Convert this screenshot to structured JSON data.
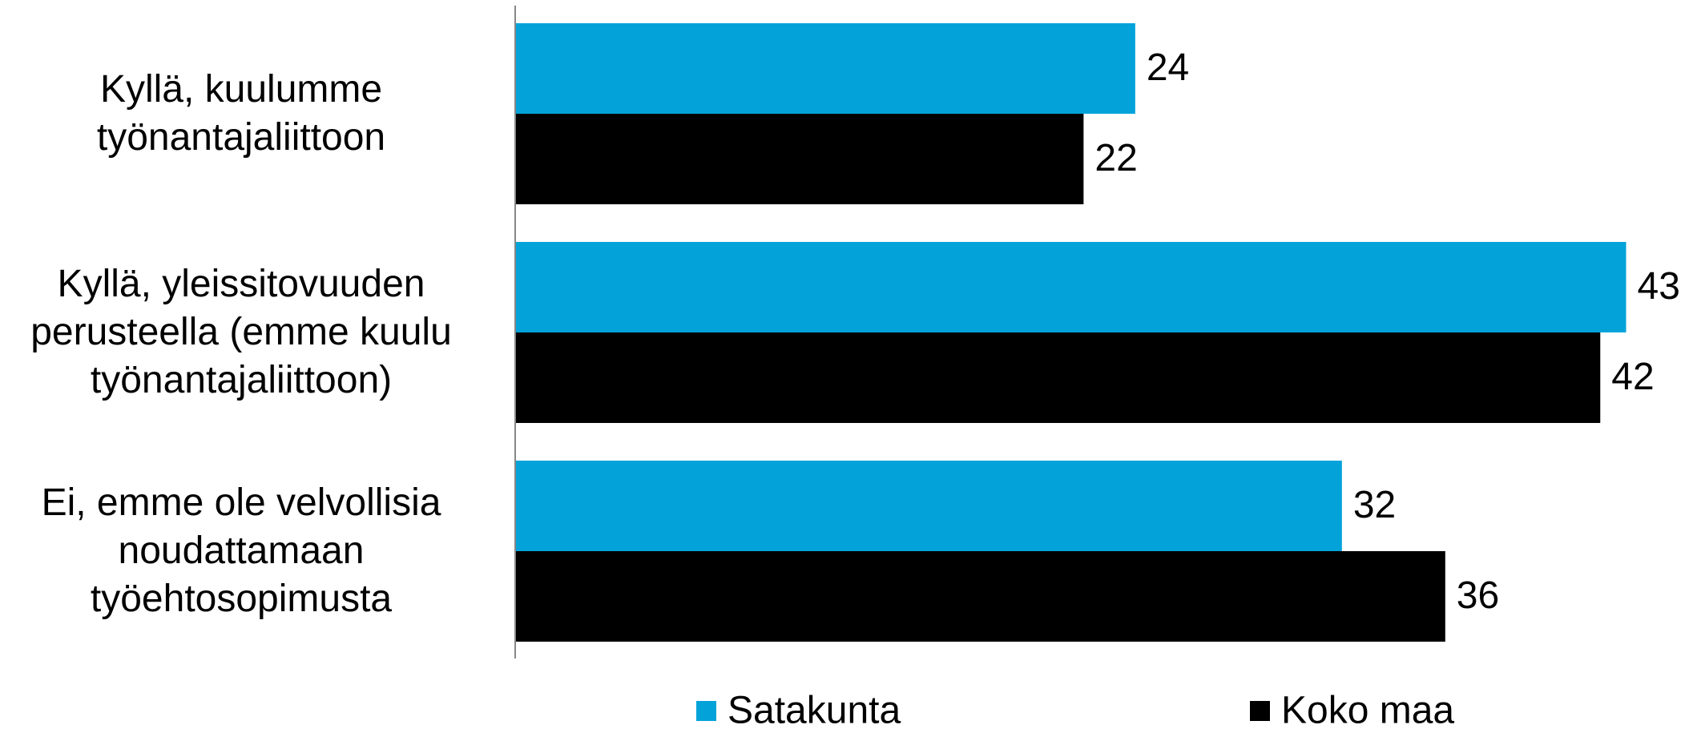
{
  "chart_data": {
    "type": "barh",
    "categories": [
      "Kyllä, kuulumme työnantajaliittoon",
      "Kyllä, yleissitovuuden perusteella (emme kuulu työnantajaliittoon)",
      "Ei, emme ole velvollisia noudattamaan työehtosopimusta"
    ],
    "series": [
      {
        "name": "Satakunta",
        "color": "#03a3da",
        "values": [
          24,
          43,
          32
        ]
      },
      {
        "name": "Koko maa",
        "color": "#000000",
        "values": [
          22,
          42,
          36
        ]
      }
    ],
    "xlim": [
      0,
      45
    ]
  }
}
